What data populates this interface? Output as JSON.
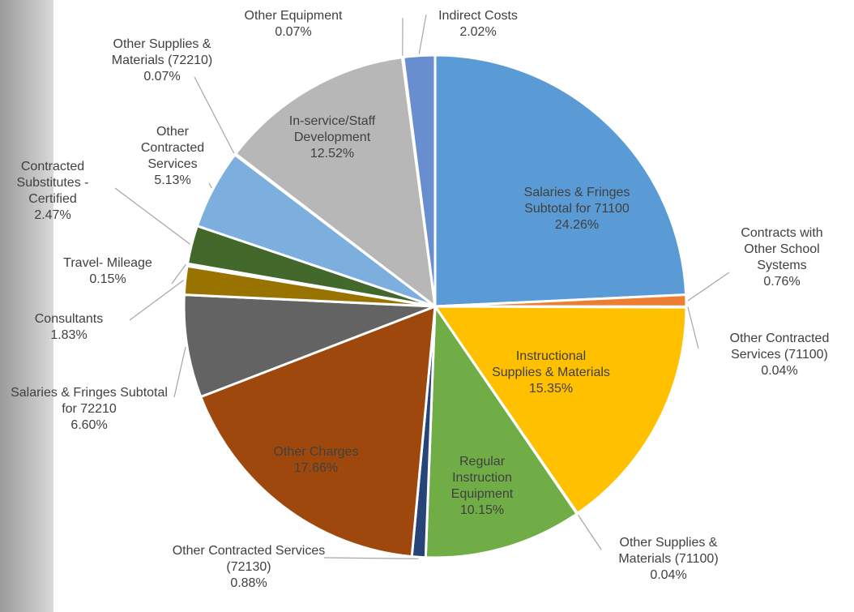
{
  "chart_data": {
    "type": "pie",
    "categories": [
      "Salaries & Fringes Subtotal for 71100",
      "Contracts with Other School Systems",
      "Other Contracted Services (71100)",
      "Instructional Supplies & Materials",
      "Other Supplies & Materials (71100)",
      "Regular Instruction Equipment",
      "Other Contracted Services (72130)",
      "Other Charges",
      "Salaries & Fringes Subtotal for 72210",
      "Consultants",
      "Travel- Mileage",
      "Contracted Substitutes - Certified",
      "Other Contracted Services",
      "Other Supplies & Materials (72210)",
      "In-service/Staff Development",
      "Other Equipment",
      "Indirect Costs"
    ],
    "values": [
      24.26,
      0.76,
      0.04,
      15.35,
      0.04,
      10.15,
      0.88,
      17.66,
      6.6,
      1.83,
      0.15,
      2.47,
      5.13,
      0.07,
      12.52,
      0.07,
      2.02
    ],
    "value_labels": [
      "24.26%",
      "0.76%",
      "0.04%",
      "15.35%",
      "0.04%",
      "10.15%",
      "0.88%",
      "17.66%",
      "6.60%",
      "1.83%",
      "0.15%",
      "2.47%",
      "5.13%",
      "0.07%",
      "12.52%",
      "0.07%",
      "2.02%"
    ],
    "colors": [
      "#5b9bd5",
      "#ed7d31",
      "#a5a5a5",
      "#ffc000",
      "#4472c4",
      "#70ad47",
      "#264478",
      "#9e480e",
      "#636363",
      "#997300",
      "#255e91",
      "#43682b",
      "#7cafdd",
      "#f1975a",
      "#b7b7b7",
      "#ffcd33",
      "#698ed0"
    ]
  }
}
